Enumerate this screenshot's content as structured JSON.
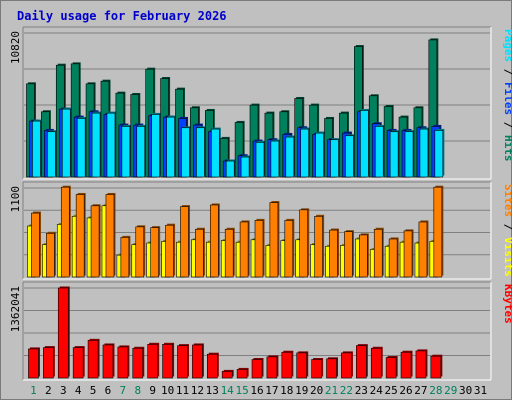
{
  "colors": {
    "hits": "#00805c",
    "files": "#0040ff",
    "pages": "#00e0ff",
    "visits": "#ffff00",
    "sites": "#ff8000",
    "kbytes": "#ff0000",
    "title": "#0000cc",
    "weekend_day": "#00805c",
    "weekday": "#000000"
  },
  "chart_data": {
    "type": "bar",
    "title": "Daily usage for February 2026",
    "days": [
      "1",
      "2",
      "3",
      "4",
      "5",
      "6",
      "7",
      "8",
      "9",
      "10",
      "11",
      "12",
      "13",
      "14",
      "15",
      "16",
      "17",
      "18",
      "19",
      "20",
      "21",
      "22",
      "23",
      "24",
      "25",
      "26",
      "27",
      "28",
      "29",
      "30",
      "31"
    ],
    "day_colors": [
      "weekend_day",
      "weekday",
      "weekday",
      "weekday",
      "weekday",
      "weekday",
      "weekend_day",
      "weekend_day",
      "weekday",
      "weekday",
      "weekday",
      "weekday",
      "weekday",
      "weekend_day",
      "weekend_day",
      "weekday",
      "weekday",
      "weekday",
      "weekday",
      "weekday",
      "weekend_day",
      "weekend_day",
      "weekday",
      "weekday",
      "weekday",
      "weekday",
      "weekday",
      "weekend_day",
      "weekend_day",
      "weekday",
      "weekday"
    ],
    "panels": [
      {
        "name": "hits-files-pages",
        "ymax_label": "10820",
        "ymax": 10820,
        "legend": [
          {
            "text": "Pages",
            "color_key": "pages"
          },
          {
            "text": " / ",
            "color_key": "weekday"
          },
          {
            "text": "Files",
            "color_key": "files"
          },
          {
            "text": " / ",
            "color_key": "weekday"
          },
          {
            "text": "Hits",
            "color_key": "hits"
          }
        ],
        "series": [
          {
            "name": "Hits",
            "color_key": "hits",
            "values": [
              7000,
              4900,
              8400,
              8500,
              7000,
              7200,
              6300,
              6200,
              8100,
              7400,
              6600,
              5200,
              5000,
              2900,
              4100,
              5400,
              4800,
              4900,
              5900,
              5400,
              4400,
              4800,
              9800,
              6100,
              5300,
              4500,
              5200,
              10300,
              null,
              null,
              null
            ]
          },
          {
            "name": "Files",
            "color_key": "files",
            "values": [
              4200,
              3500,
              5100,
              4500,
              4900,
              4700,
              3900,
              3900,
              4600,
              4500,
              4400,
              3900,
              3400,
              1200,
              1600,
              2700,
              2800,
              3200,
              3700,
              3200,
              2800,
              3300,
              4900,
              4000,
              3500,
              3500,
              3700,
              3800,
              null,
              null,
              null
            ]
          },
          {
            "name": "Pages",
            "color_key": "pages",
            "values": [
              4200,
              3400,
              5100,
              4400,
              4800,
              4800,
              3800,
              3800,
              4700,
              4500,
              3700,
              3700,
              3600,
              1200,
              1500,
              2600,
              2700,
              3000,
              3600,
              3300,
              2800,
              3100,
              5000,
              3800,
              3400,
              3400,
              3600,
              3500,
              null,
              null,
              null
            ]
          }
        ]
      },
      {
        "name": "visits-sites",
        "ymax_label": "1100",
        "ymax": 1100,
        "legend": [
          {
            "text": "Sites",
            "color_key": "sites"
          },
          {
            "text": " / ",
            "color_key": "weekday"
          },
          {
            "text": "Visits",
            "color_key": "visits"
          }
        ],
        "series": [
          {
            "name": "Visits",
            "color_key": "visits",
            "values": [
              630,
              400,
              650,
              750,
              730,
              880,
              270,
              400,
              420,
              440,
              430,
              460,
              430,
              450,
              430,
              460,
              390,
              450,
              460,
              400,
              380,
              390,
              470,
              340,
              380,
              430,
              420,
              440,
              null,
              null,
              null
            ]
          },
          {
            "name": "Sites",
            "color_key": "sites",
            "values": [
              790,
              540,
              1110,
              1020,
              880,
              1020,
              490,
              620,
              610,
              640,
              870,
              590,
              890,
              590,
              680,
              700,
              920,
              700,
              830,
              750,
              580,
              560,
              520,
              590,
              470,
              570,
              680,
              1110,
              null,
              null,
              null
            ]
          }
        ]
      },
      {
        "name": "kbytes",
        "ymax_label": "1362041",
        "ymax": 1362041,
        "legend": [
          {
            "text": "KBytes",
            "color_key": "kbytes"
          }
        ],
        "series": [
          {
            "name": "KBytes",
            "color_key": "kbytes",
            "values": [
              440000,
              460000,
              1362041,
              460000,
              570000,
              500000,
              470000,
              450000,
              510000,
              510000,
              490000,
              500000,
              360000,
              100000,
              130000,
              280000,
              320000,
              390000,
              380000,
              280000,
              290000,
              380000,
              490000,
              450000,
              310000,
              390000,
              410000,
              330000,
              null,
              null,
              null
            ]
          }
        ]
      }
    ]
  }
}
